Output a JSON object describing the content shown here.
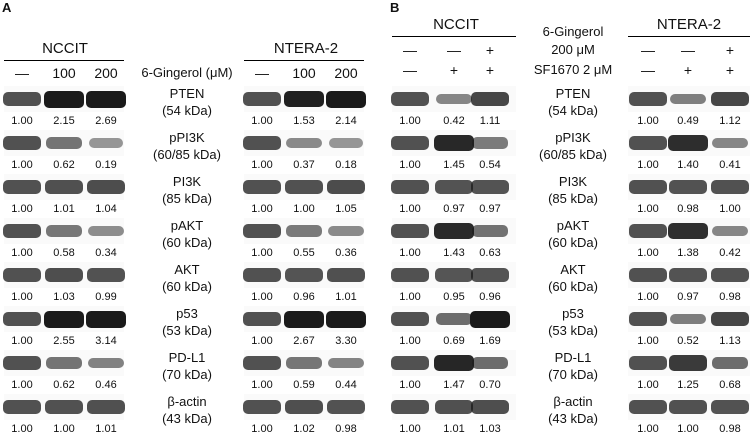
{
  "colors": {
    "band": "#1a1a1a",
    "line": "#000000"
  },
  "panelA": {
    "letter": "A",
    "treatment_label": "6-Gingerol (μM)",
    "left": {
      "title": "NCCIT",
      "conditions": [
        "—",
        "100",
        "200"
      ],
      "rows": [
        {
          "values": [
            "1.00",
            "2.15",
            "2.69"
          ]
        },
        {
          "values": [
            "1.00",
            "0.62",
            "0.19"
          ]
        },
        {
          "values": [
            "1.00",
            "1.01",
            "1.04"
          ]
        },
        {
          "values": [
            "1.00",
            "0.58",
            "0.34"
          ]
        },
        {
          "values": [
            "1.00",
            "1.03",
            "0.99"
          ]
        },
        {
          "values": [
            "1.00",
            "2.55",
            "3.14"
          ]
        },
        {
          "values": [
            "1.00",
            "0.62",
            "0.46"
          ]
        },
        {
          "values": [
            "1.00",
            "1.00",
            "1.01"
          ]
        }
      ]
    },
    "right": {
      "title": "NTERA-2",
      "conditions": [
        "—",
        "100",
        "200"
      ],
      "rows": [
        {
          "values": [
            "1.00",
            "1.53",
            "2.14"
          ]
        },
        {
          "values": [
            "1.00",
            "0.37",
            "0.18"
          ]
        },
        {
          "values": [
            "1.00",
            "1.00",
            "1.05"
          ]
        },
        {
          "values": [
            "1.00",
            "0.55",
            "0.36"
          ]
        },
        {
          "values": [
            "1.00",
            "0.96",
            "1.01"
          ]
        },
        {
          "values": [
            "1.00",
            "2.67",
            "3.30"
          ]
        },
        {
          "values": [
            "1.00",
            "0.59",
            "0.44"
          ]
        },
        {
          "values": [
            "1.00",
            "1.02",
            "0.98"
          ]
        }
      ]
    }
  },
  "panelB": {
    "letter": "B",
    "gingerol_label_1": "6-Gingerol",
    "gingerol_label_2": "200 μM",
    "sf_label": "SF1670 2 μM",
    "left": {
      "title": "NCCIT",
      "gingerol_marks": [
        "—",
        "—",
        "+"
      ],
      "sf_marks": [
        "—",
        "+",
        "+"
      ],
      "rows": [
        {
          "values": [
            "1.00",
            "0.42",
            "1.11"
          ]
        },
        {
          "values": [
            "1.00",
            "1.45",
            "0.54"
          ]
        },
        {
          "values": [
            "1.00",
            "0.97",
            "0.97"
          ]
        },
        {
          "values": [
            "1.00",
            "1.43",
            "0.63"
          ]
        },
        {
          "values": [
            "1.00",
            "0.95",
            "0.96"
          ]
        },
        {
          "values": [
            "1.00",
            "0.69",
            "1.69"
          ]
        },
        {
          "values": [
            "1.00",
            "1.47",
            "0.70"
          ]
        },
        {
          "values": [
            "1.00",
            "1.01",
            "1.03"
          ]
        }
      ]
    },
    "right": {
      "title": "NTERA-2",
      "gingerol_marks": [
        "—",
        "—",
        "+"
      ],
      "sf_marks": [
        "—",
        "+",
        "+"
      ],
      "rows": [
        {
          "values": [
            "1.00",
            "0.49",
            "1.12"
          ]
        },
        {
          "values": [
            "1.00",
            "1.40",
            "0.41"
          ]
        },
        {
          "values": [
            "1.00",
            "0.98",
            "1.00"
          ]
        },
        {
          "values": [
            "1.00",
            "1.38",
            "0.42"
          ]
        },
        {
          "values": [
            "1.00",
            "0.97",
            "0.98"
          ]
        },
        {
          "values": [
            "1.00",
            "0.52",
            "1.13"
          ]
        },
        {
          "values": [
            "1.00",
            "1.25",
            "0.68"
          ]
        },
        {
          "values": [
            "1.00",
            "1.00",
            "0.98"
          ]
        }
      ]
    }
  },
  "proteins": [
    {
      "name": "PTEN",
      "kda": "(54 kDa)"
    },
    {
      "name": "pPI3K",
      "kda": "(60/85 kDa)"
    },
    {
      "name": "PI3K",
      "kda": "(85 kDa)"
    },
    {
      "name": "pAKT",
      "kda": "(60 kDa)"
    },
    {
      "name": "AKT",
      "kda": "(60 kDa)"
    },
    {
      "name": "p53",
      "kda": "(53 kDa)"
    },
    {
      "name": "PD-L1",
      "kda": "(70 kDa)"
    },
    {
      "name": "β-actin",
      "kda": "(43 kDa)"
    }
  ]
}
